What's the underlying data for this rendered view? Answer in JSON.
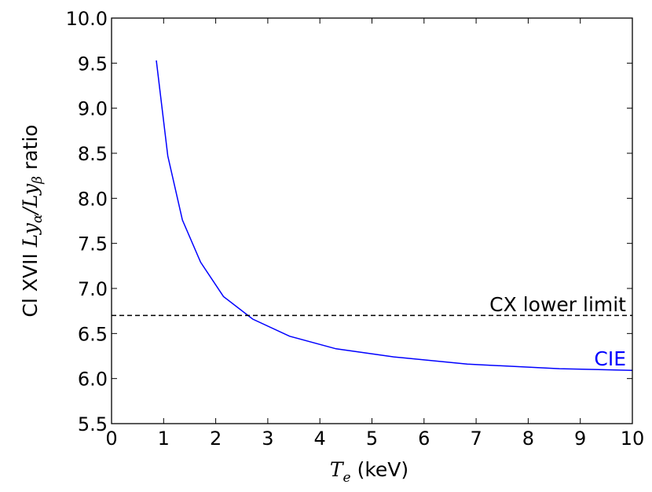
{
  "chart_data": {
    "type": "line",
    "title": "",
    "xlabel": {
      "symbol": "T",
      "subscript": "e",
      "unit": "(keV)"
    },
    "ylabel": {
      "prefix": "Cl XVII ",
      "num_symbol": "Ly",
      "num_sub": "α",
      "slash": "/",
      "den_symbol": "Ly",
      "den_sub": "β",
      "suffix": " ratio"
    },
    "xlim": [
      0,
      10
    ],
    "ylim": [
      5.5,
      10.0
    ],
    "xticks": [
      "0",
      "1",
      "2",
      "3",
      "4",
      "5",
      "6",
      "7",
      "8",
      "9",
      "10"
    ],
    "yticks": [
      "5.5",
      "6.0",
      "6.5",
      "7.0",
      "7.5",
      "8.0",
      "8.5",
      "9.0",
      "9.5",
      "10.0"
    ],
    "grid": false,
    "series": [
      {
        "name": "CIE",
        "color": "#0000ff",
        "style": "solid",
        "x": [
          0.86,
          1.08,
          1.36,
          1.71,
          2.15,
          2.71,
          3.42,
          4.31,
          5.42,
          6.83,
          8.6,
          10.0
        ],
        "y": [
          9.53,
          8.47,
          7.76,
          7.29,
          6.91,
          6.66,
          6.47,
          6.33,
          6.24,
          6.16,
          6.11,
          6.09
        ]
      },
      {
        "name": "CX lower limit",
        "color": "#000000",
        "style": "dashed",
        "x": [
          0,
          10
        ],
        "y": [
          6.7,
          6.7
        ]
      }
    ],
    "annotations": [
      {
        "text": "CX lower limit",
        "color": "#000000"
      },
      {
        "text": "CIE",
        "color": "#0000ff"
      }
    ]
  }
}
